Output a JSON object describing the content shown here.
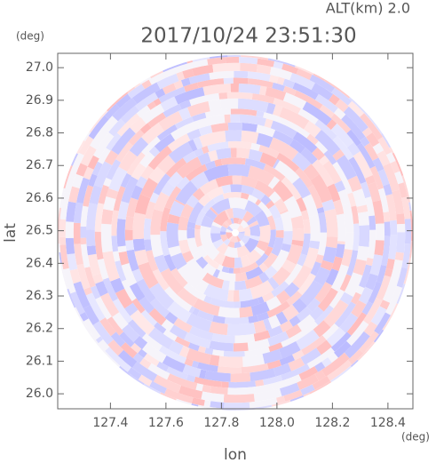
{
  "chart_data": {
    "type": "radar-image",
    "title": "2017/10/24 23:51:30",
    "subtitle": "ALT(km) 2.0",
    "x_label": "lon",
    "y_label": "lat",
    "x_unit": "(deg)",
    "y_unit": "(deg)",
    "xlim": [
      127.21,
      128.49
    ],
    "ylim": [
      25.954,
      27.044
    ],
    "xticks": [
      127.4,
      127.6,
      127.8,
      {
        "value": 128.0,
        "label": "128.0"
      },
      128.2,
      128.4
    ],
    "yticks": [
      {
        "value": 26.0,
        "label": "26.0"
      },
      26.1,
      26.2,
      26.3,
      26.4,
      26.5,
      26.6,
      26.7,
      26.8,
      26.9,
      {
        "value": 27.0,
        "label": "27.0"
      }
    ]
  }
}
